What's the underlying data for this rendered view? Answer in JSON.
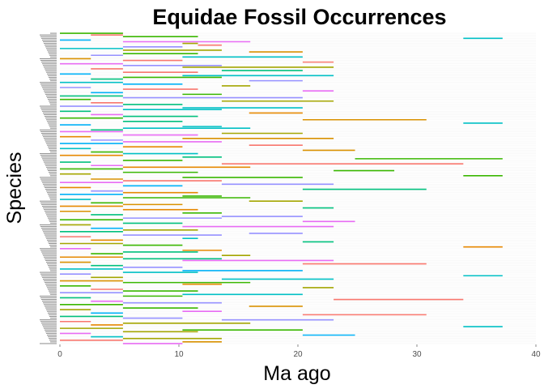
{
  "chart_data": {
    "type": "range-bar",
    "title": "Equidae Fossil Occurrences",
    "xlabel": "Ma ago",
    "ylabel": "Species",
    "xlim": [
      0,
      40
    ],
    "x_ticks": [
      0,
      10,
      20,
      30,
      40
    ],
    "x_tick_labels": [
      "0",
      "10",
      "20",
      "30",
      "40"
    ],
    "y_tick_labels_legible": false,
    "grid": false,
    "legend": "none",
    "colors": [
      "#00b0f6",
      "#e76bf3",
      "#f8766d",
      "#a3a500",
      "#00bf7d",
      "#39b600",
      "#9590ff",
      "#d89000",
      "#00bfc4",
      "#e58700"
    ],
    "intervals": [
      [
        0,
        5.3
      ],
      [
        2.6,
        5.3
      ],
      [
        5.3,
        11.6
      ],
      [
        33.9,
        37.2
      ],
      [
        0,
        2.6
      ],
      [
        5.3,
        16
      ],
      [
        10.3,
        11.6
      ],
      [
        11.6,
        13.6
      ],
      [
        5.3,
        10.3
      ],
      [
        0,
        5.3
      ],
      [
        5.3,
        13.6
      ],
      [
        15.9,
        20.4
      ],
      [
        5.3,
        11.6
      ],
      [
        2.6,
        5.3
      ],
      [
        10.3,
        20.4
      ],
      [
        0,
        2.6
      ],
      [
        5.3,
        10.3
      ],
      [
        20.4,
        23
      ],
      [
        0,
        5.3
      ],
      [
        5.3,
        13.6
      ],
      [
        10.3,
        23
      ],
      [
        2.6,
        5.3
      ],
      [
        13.6,
        20.4
      ],
      [
        5.3,
        11.6
      ],
      [
        0,
        2.6
      ],
      [
        10.3,
        23
      ],
      [
        5.3,
        13.6
      ],
      [
        2.6,
        5.3
      ],
      [
        15.9,
        20.4
      ],
      [
        0,
        5.3
      ],
      [
        5.3,
        10.3
      ],
      [
        13.6,
        16
      ],
      [
        0,
        2.6
      ],
      [
        5.3,
        11.6
      ],
      [
        20.4,
        23
      ],
      [
        2.6,
        5.3
      ],
      [
        10.3,
        13.6
      ],
      [
        0,
        5.3
      ],
      [
        5.3,
        20.4
      ],
      [
        0,
        2.6
      ],
      [
        13.6,
        23
      ],
      [
        2.6,
        5.3
      ],
      [
        5.3,
        10.3
      ],
      [
        0,
        5.3
      ],
      [
        10.3,
        20.4
      ],
      [
        5.3,
        13.6
      ],
      [
        0,
        2.6
      ],
      [
        15.9,
        20.4
      ],
      [
        2.6,
        5.3
      ],
      [
        5.3,
        11.6
      ],
      [
        0,
        5.3
      ],
      [
        20.4,
        30.8
      ],
      [
        5.3,
        10.3
      ],
      [
        33.9,
        37.2
      ],
      [
        0,
        2.6
      ],
      [
        10.3,
        13.6
      ],
      [
        5.3,
        16
      ],
      [
        2.6,
        5.3
      ],
      [
        0,
        5.3
      ],
      [
        13.6,
        20.4
      ],
      [
        5.3,
        11.6
      ],
      [
        0,
        2.6
      ],
      [
        10.3,
        23
      ],
      [
        2.6,
        5.3
      ],
      [
        5.3,
        13.6
      ],
      [
        0,
        5.3
      ],
      [
        15.9,
        20.4
      ],
      [
        5.3,
        10.3
      ],
      [
        0,
        2.6
      ],
      [
        20.4,
        24.8
      ],
      [
        2.6,
        5.3
      ],
      [
        5.3,
        11.6
      ],
      [
        0,
        5.3
      ],
      [
        10.3,
        13.6
      ],
      [
        24.8,
        37.2
      ],
      [
        5.3,
        10.3
      ],
      [
        0,
        2.6
      ],
      [
        13.6,
        33.9
      ],
      [
        2.6,
        5.3
      ],
      [
        5.3,
        16
      ],
      [
        0,
        5.3
      ],
      [
        23,
        28.1
      ],
      [
        5.3,
        11.6
      ],
      [
        0,
        2.6
      ],
      [
        33.9,
        37.2
      ],
      [
        10.3,
        20.4
      ],
      [
        2.6,
        5.3
      ],
      [
        5.3,
        13.6
      ],
      [
        0,
        5.3
      ],
      [
        13.6,
        23
      ],
      [
        5.3,
        10.3
      ],
      [
        0,
        2.6
      ],
      [
        20.4,
        30.8
      ],
      [
        2.6,
        5.3
      ],
      [
        5.3,
        11.6
      ],
      [
        0,
        5.3
      ],
      [
        10.3,
        13.6
      ],
      [
        5.3,
        16
      ],
      [
        0,
        2.6
      ],
      [
        15.9,
        20.4
      ],
      [
        2.6,
        5.3
      ],
      [
        5.3,
        10.3
      ],
      [
        0,
        5.3
      ],
      [
        20.4,
        23
      ],
      [
        5.3,
        11.6
      ],
      [
        0,
        2.6
      ],
      [
        10.3,
        13.6
      ],
      [
        2.6,
        5.3
      ],
      [
        13.6,
        20.4
      ],
      [
        5.3,
        13.6
      ],
      [
        0,
        5.3
      ],
      [
        20.4,
        24.8
      ],
      [
        5.3,
        10.3
      ],
      [
        0,
        2.6
      ],
      [
        10.3,
        23
      ],
      [
        2.6,
        5.3
      ],
      [
        5.3,
        11.6
      ],
      [
        0,
        5.3
      ],
      [
        15.9,
        20.4
      ],
      [
        5.3,
        13.6
      ],
      [
        0,
        2.6
      ],
      [
        10.3,
        11.6
      ],
      [
        2.6,
        5.3
      ],
      [
        20.4,
        23
      ],
      [
        0,
        5.3
      ],
      [
        5.3,
        10.3
      ],
      [
        33.9,
        37.2
      ],
      [
        0,
        2.6
      ],
      [
        10.3,
        13.6
      ],
      [
        5.3,
        11.6
      ],
      [
        2.6,
        5.3
      ],
      [
        13.6,
        16
      ],
      [
        0,
        5.3
      ],
      [
        5.3,
        13.6
      ],
      [
        10.3,
        23
      ],
      [
        0,
        2.6
      ],
      [
        20.4,
        30.8
      ],
      [
        2.6,
        5.3
      ],
      [
        5.3,
        10.3
      ],
      [
        0,
        5.3
      ],
      [
        10.3,
        20.4
      ],
      [
        5.3,
        11.6
      ],
      [
        0,
        2.6
      ],
      [
        33.9,
        37.2
      ],
      [
        2.6,
        5.3
      ],
      [
        13.6,
        23
      ],
      [
        0,
        5.3
      ],
      [
        5.3,
        16
      ],
      [
        10.3,
        13.6
      ],
      [
        0,
        2.6
      ],
      [
        20.4,
        23
      ],
      [
        2.6,
        5.3
      ],
      [
        5.3,
        11.6
      ],
      [
        0,
        5.3
      ],
      [
        10.3,
        20.4
      ],
      [
        5.3,
        10.3
      ],
      [
        0,
        2.6
      ],
      [
        23,
        33.9
      ],
      [
        2.6,
        5.3
      ],
      [
        5.3,
        13.6
      ],
      [
        0,
        5.3
      ],
      [
        15.9,
        20.4
      ],
      [
        5.3,
        11.6
      ],
      [
        0,
        2.6
      ],
      [
        10.3,
        13.6
      ],
      [
        2.6,
        5.3
      ],
      [
        20.4,
        30.8
      ],
      [
        0,
        5.3
      ],
      [
        5.3,
        10.3
      ],
      [
        13.6,
        23
      ],
      [
        0,
        2.6
      ],
      [
        5.3,
        16
      ],
      [
        2.6,
        5.3
      ],
      [
        33.9,
        37.2
      ],
      [
        0,
        5.3
      ],
      [
        10.3,
        20.4
      ],
      [
        5.3,
        11.6
      ],
      [
        0,
        2.6
      ],
      [
        20.4,
        24.8
      ],
      [
        2.6,
        5.3
      ],
      [
        5.3,
        13.6
      ],
      [
        0,
        5.3
      ],
      [
        10.3,
        13.6
      ],
      [
        5.3,
        10.3
      ]
    ]
  }
}
